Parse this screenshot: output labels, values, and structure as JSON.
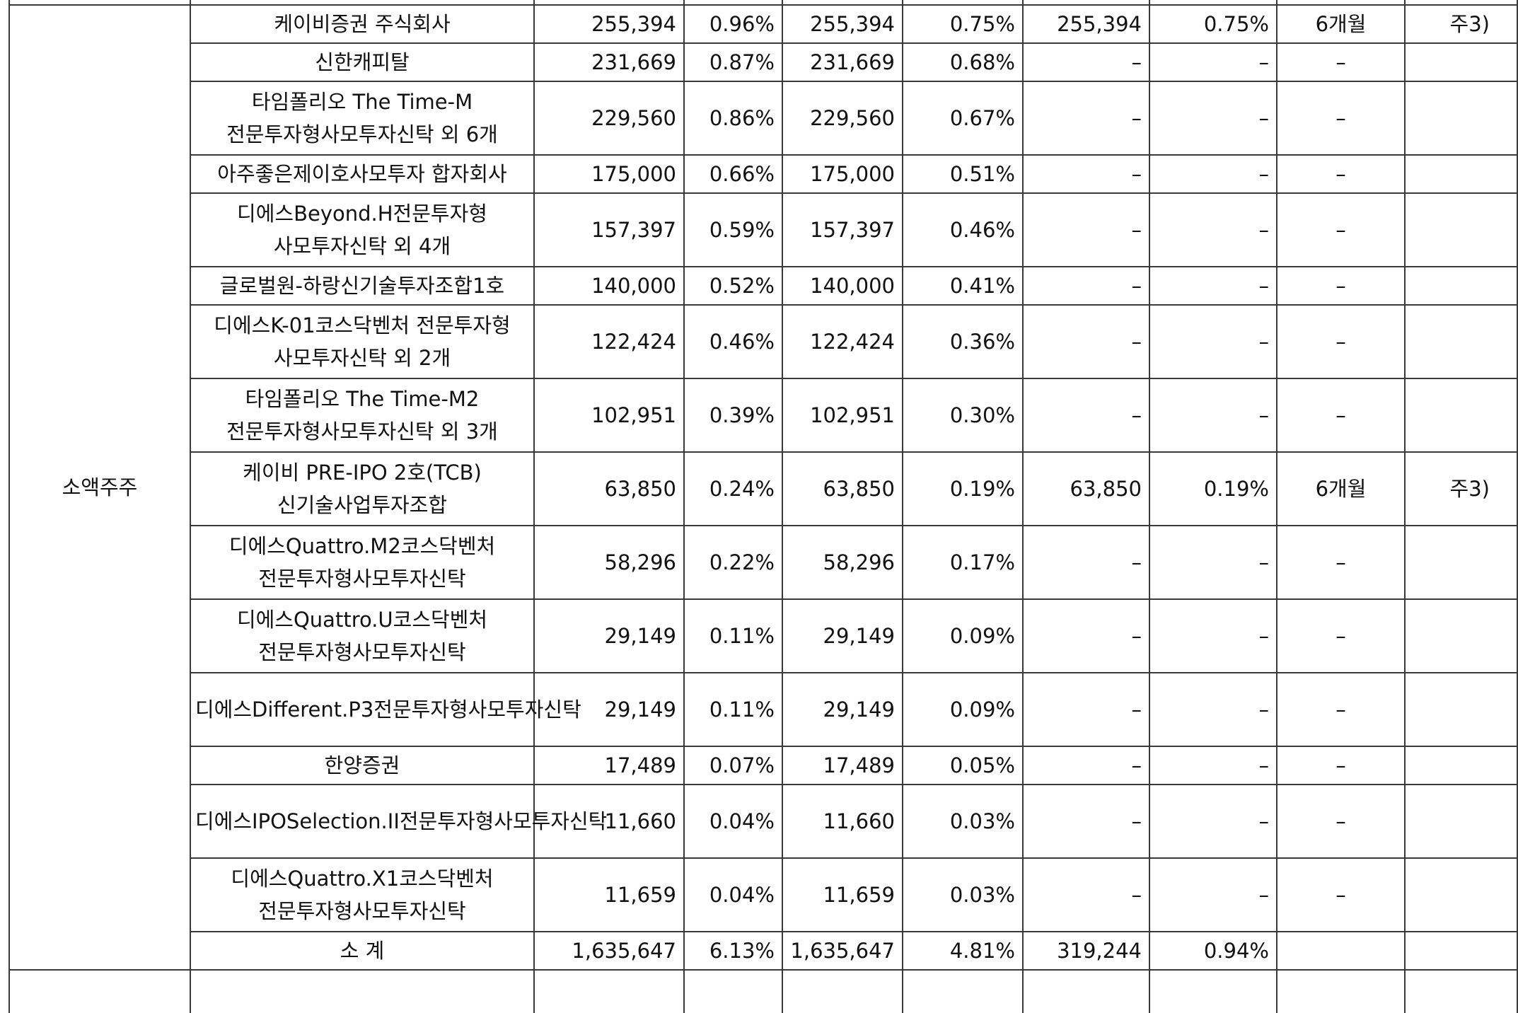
{
  "group_label": "소액주주",
  "rows": [
    {
      "name": "케이비증권 주식회사",
      "shares_before": "255,394",
      "ratio_before": "0.96%",
      "shares_after": "255,394",
      "ratio_after": "0.75%",
      "lock_shares": "255,394",
      "lock_ratio": "0.75%",
      "lock_period": "6개월",
      "note": "주3)",
      "lines": 1
    },
    {
      "name": "신한캐피탈",
      "shares_before": "231,669",
      "ratio_before": "0.87%",
      "shares_after": "231,669",
      "ratio_after": "0.68%",
      "lock_shares": "–",
      "lock_ratio": "–",
      "lock_period": "–",
      "note": "",
      "lines": 1
    },
    {
      "name": "타임폴리오 The Time-M 전문투자형사모투자신탁 외 6개",
      "shares_before": "229,560",
      "ratio_before": "0.86%",
      "shares_after": "229,560",
      "ratio_after": "0.67%",
      "lock_shares": "–",
      "lock_ratio": "–",
      "lock_period": "–",
      "note": "",
      "lines": 2
    },
    {
      "name": "아주좋은제이호사모투자 합자회사",
      "shares_before": "175,000",
      "ratio_before": "0.66%",
      "shares_after": "175,000",
      "ratio_after": "0.51%",
      "lock_shares": "–",
      "lock_ratio": "–",
      "lock_period": "–",
      "note": "",
      "lines": 1
    },
    {
      "name": "디에스Beyond.H전문투자형 사모투자신탁 외 4개",
      "shares_before": "157,397",
      "ratio_before": "0.59%",
      "shares_after": "157,397",
      "ratio_after": "0.46%",
      "lock_shares": "–",
      "lock_ratio": "–",
      "lock_period": "–",
      "note": "",
      "lines": 2
    },
    {
      "name": "글로벌원-하랑신기술투자조합1호",
      "shares_before": "140,000",
      "ratio_before": "0.52%",
      "shares_after": "140,000",
      "ratio_after": "0.41%",
      "lock_shares": "–",
      "lock_ratio": "–",
      "lock_period": "–",
      "note": "",
      "lines": 1
    },
    {
      "name": "디에스K-01코스닥벤처 전문투자형 사모투자신탁 외 2개",
      "shares_before": "122,424",
      "ratio_before": "0.46%",
      "shares_after": "122,424",
      "ratio_after": "0.36%",
      "lock_shares": "–",
      "lock_ratio": "–",
      "lock_period": "–",
      "note": "",
      "lines": 2
    },
    {
      "name": "타임폴리오 The Time-M2 전문투자형사모투자신탁 외 3개",
      "shares_before": "102,951",
      "ratio_before": "0.39%",
      "shares_after": "102,951",
      "ratio_after": "0.30%",
      "lock_shares": "–",
      "lock_ratio": "–",
      "lock_period": "–",
      "note": "",
      "lines": 2
    },
    {
      "name": "케이비 PRE-IPO 2호(TCB) 신기술사업투자조합",
      "shares_before": "63,850",
      "ratio_before": "0.24%",
      "shares_after": "63,850",
      "ratio_after": "0.19%",
      "lock_shares": "63,850",
      "lock_ratio": "0.19%",
      "lock_period": "6개월",
      "note": "주3)",
      "lines": 2
    },
    {
      "name": "디에스Quattro.M2코스닥벤처 전문투자형사모투자신탁",
      "shares_before": "58,296",
      "ratio_before": "0.22%",
      "shares_after": "58,296",
      "ratio_after": "0.17%",
      "lock_shares": "–",
      "lock_ratio": "–",
      "lock_period": "–",
      "note": "",
      "lines": 2
    },
    {
      "name": "디에스Quattro.U코스닥벤처 전문투자형사모투자신탁",
      "shares_before": "29,149",
      "ratio_before": "0.11%",
      "shares_after": "29,149",
      "ratio_after": "0.09%",
      "lock_shares": "–",
      "lock_ratio": "–",
      "lock_period": "–",
      "note": "",
      "lines": 2
    },
    {
      "name": "디에스Different.P3전문투자형사모투자신탁",
      "shares_before": "29,149",
      "ratio_before": "0.11%",
      "shares_after": "29,149",
      "ratio_after": "0.09%",
      "lock_shares": "–",
      "lock_ratio": "–",
      "lock_period": "–",
      "note": "",
      "lines": 2
    },
    {
      "name": "한양증권",
      "shares_before": "17,489",
      "ratio_before": "0.07%",
      "shares_after": "17,489",
      "ratio_after": "0.05%",
      "lock_shares": "–",
      "lock_ratio": "–",
      "lock_period": "–",
      "note": "",
      "lines": 1
    },
    {
      "name": "디에스IPOSelection.II전문투자형사모투자신탁",
      "shares_before": "11,660",
      "ratio_before": "0.04%",
      "shares_after": "11,660",
      "ratio_after": "0.03%",
      "lock_shares": "–",
      "lock_ratio": "–",
      "lock_period": "–",
      "note": "",
      "lines": 2
    },
    {
      "name": "디에스Quattro.X1코스닥벤처 전문투자형사모투자신탁",
      "shares_before": "11,659",
      "ratio_before": "0.04%",
      "shares_after": "11,659",
      "ratio_after": "0.03%",
      "lock_shares": "–",
      "lock_ratio": "–",
      "lock_period": "–",
      "note": "",
      "lines": 2
    }
  ],
  "subtotal": {
    "label": "소  계",
    "shares_before": "1,635,647",
    "ratio_before": "6.13%",
    "shares_after": "1,635,647",
    "ratio_after": "4.81%",
    "lock_shares": "319,244",
    "lock_ratio": "0.94%",
    "lock_period": "",
    "note": ""
  }
}
